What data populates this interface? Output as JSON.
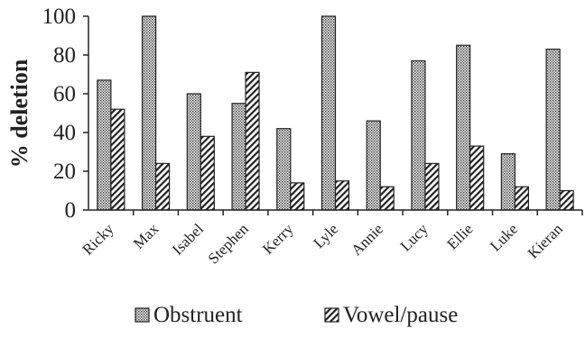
{
  "chart_data": {
    "type": "bar",
    "categories": [
      "Ricky",
      "Max",
      "Isabel",
      "Stephen",
      "Kerry",
      "Lyle",
      "Annie",
      "Lucy",
      "Ellie",
      "Luke",
      "Kieran"
    ],
    "series": [
      {
        "name": "Obstruent",
        "values": [
          67,
          100,
          60,
          55,
          42,
          100,
          46,
          77,
          85,
          29,
          83
        ],
        "pattern": "dotted"
      },
      {
        "name": "Vowel/pause",
        "values": [
          52,
          24,
          38,
          71,
          14,
          15,
          12,
          24,
          33,
          12,
          10
        ],
        "pattern": "hatched"
      }
    ],
    "title": "",
    "xlabel": "",
    "ylabel": "% deletion",
    "ylim": [
      0,
      100
    ],
    "yticks": [
      0,
      20,
      40,
      60,
      80,
      100
    ],
    "grid": false,
    "legend_position": "bottom"
  }
}
